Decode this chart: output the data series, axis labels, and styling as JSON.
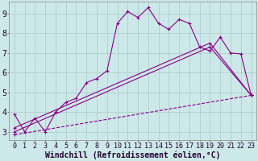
{
  "xlabel": "Windchill (Refroidissement éolien,°C)",
  "background_color": "#cde8e8",
  "grid_color": "#b0d0d0",
  "line_color": "#880088",
  "xlim": [
    -0.5,
    23.5
  ],
  "ylim": [
    2.6,
    9.6
  ],
  "x_ticks": [
    0,
    1,
    2,
    3,
    4,
    5,
    6,
    7,
    8,
    9,
    10,
    11,
    12,
    13,
    14,
    15,
    16,
    17,
    18,
    19,
    20,
    21,
    22,
    23
  ],
  "y_ticks": [
    3,
    4,
    5,
    6,
    7,
    8,
    9
  ],
  "series1_x": [
    0,
    1,
    2,
    3,
    4,
    5,
    6,
    7,
    8,
    9,
    10,
    11,
    12,
    13,
    14,
    15,
    16,
    17,
    18,
    19,
    20,
    21,
    22,
    23
  ],
  "series1_y": [
    3.9,
    3.0,
    3.7,
    3.0,
    4.0,
    4.5,
    4.7,
    5.5,
    5.7,
    6.1,
    8.5,
    9.1,
    8.8,
    9.3,
    8.5,
    8.2,
    8.7,
    8.5,
    7.3,
    7.1,
    7.8,
    7.0,
    6.95,
    4.85
  ],
  "series2_x": [
    0,
    19,
    23
  ],
  "series2_y": [
    3.0,
    7.3,
    4.85
  ],
  "series3_x": [
    0,
    19,
    23
  ],
  "series3_y": [
    3.2,
    7.5,
    4.85
  ],
  "series4_x": [
    0,
    23
  ],
  "series4_y": [
    2.85,
    4.85
  ],
  "tick_fontsize": 6,
  "label_fontsize": 7
}
